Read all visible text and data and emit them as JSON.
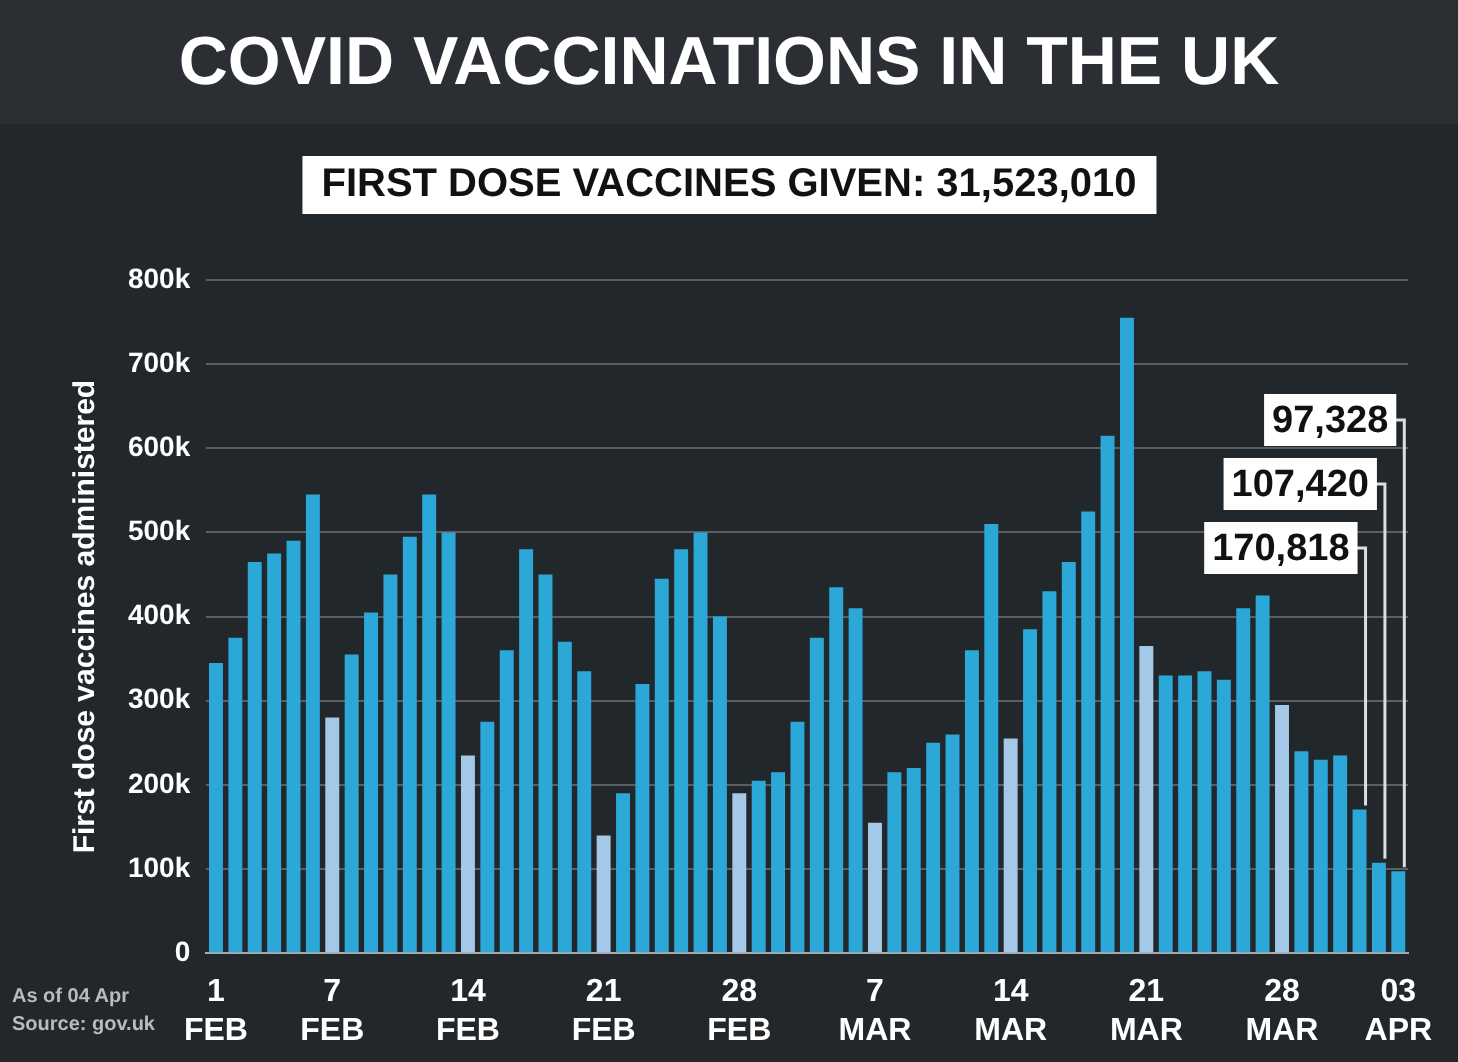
{
  "chart_data": {
    "type": "bar",
    "title": "COVID VACCINATIONS IN THE UK",
    "subtitle": "FIRST DOSE VACCINES GIVEN: 31,523,010",
    "ylabel": "First dose vaccines administered",
    "annotations": [
      "As of 04 Apr",
      "Source: gov.uk"
    ],
    "categories": [
      "1 FEB",
      null,
      null,
      null,
      null,
      null,
      "7 FEB",
      null,
      null,
      null,
      null,
      null,
      null,
      "14 FEB",
      null,
      null,
      null,
      null,
      null,
      null,
      "21 FEB",
      null,
      null,
      null,
      null,
      null,
      null,
      "28 FEB",
      null,
      null,
      null,
      null,
      null,
      null,
      "7 MAR",
      null,
      null,
      null,
      null,
      null,
      null,
      "14 MAR",
      null,
      null,
      null,
      null,
      null,
      null,
      "21 MAR",
      null,
      null,
      null,
      null,
      null,
      null,
      "28 MAR",
      null,
      null,
      null,
      null,
      null,
      "03 APR"
    ],
    "values": [
      345000,
      375000,
      465000,
      475000,
      490000,
      545000,
      280000,
      355000,
      405000,
      450000,
      495000,
      545000,
      500000,
      235000,
      275000,
      360000,
      480000,
      450000,
      370000,
      335000,
      140000,
      190000,
      320000,
      445000,
      480000,
      500000,
      400000,
      190000,
      205000,
      215000,
      275000,
      375000,
      435000,
      410000,
      155000,
      215000,
      220000,
      250000,
      260000,
      360000,
      510000,
      255000,
      385000,
      430000,
      465000,
      525000,
      615000,
      755000,
      365000,
      330000,
      330000,
      335000,
      325000,
      410000,
      425000,
      295000,
      240000,
      230000,
      235000,
      170818,
      107420,
      97328
    ],
    "colors": [
      "#2ba8d8",
      "#2ba8d8",
      "#2ba8d8",
      "#2ba8d8",
      "#2ba8d8",
      "#2ba8d8",
      "#a3c8e8",
      "#2ba8d8",
      "#2ba8d8",
      "#2ba8d8",
      "#2ba8d8",
      "#2ba8d8",
      "#2ba8d8",
      "#a3c8e8",
      "#2ba8d8",
      "#2ba8d8",
      "#2ba8d8",
      "#2ba8d8",
      "#2ba8d8",
      "#2ba8d8",
      "#a3c8e8",
      "#2ba8d8",
      "#2ba8d8",
      "#2ba8d8",
      "#2ba8d8",
      "#2ba8d8",
      "#2ba8d8",
      "#a3c8e8",
      "#2ba8d8",
      "#2ba8d8",
      "#2ba8d8",
      "#2ba8d8",
      "#2ba8d8",
      "#2ba8d8",
      "#a3c8e8",
      "#2ba8d8",
      "#2ba8d8",
      "#2ba8d8",
      "#2ba8d8",
      "#2ba8d8",
      "#2ba8d8",
      "#a3c8e8",
      "#2ba8d8",
      "#2ba8d8",
      "#2ba8d8",
      "#2ba8d8",
      "#2ba8d8",
      "#2ba8d8",
      "#a3c8e8",
      "#2ba8d8",
      "#2ba8d8",
      "#2ba8d8",
      "#2ba8d8",
      "#2ba8d8",
      "#2ba8d8",
      "#a3c8e8",
      "#2ba8d8",
      "#2ba8d8",
      "#2ba8d8",
      "#2ba8d8",
      "#2ba8d8",
      "#2ba8d8"
    ],
    "value_labels": [
      null,
      null,
      null,
      null,
      null,
      null,
      null,
      null,
      null,
      null,
      null,
      null,
      null,
      null,
      null,
      null,
      null,
      null,
      null,
      null,
      null,
      null,
      null,
      null,
      null,
      null,
      null,
      null,
      null,
      null,
      null,
      null,
      null,
      null,
      null,
      null,
      null,
      null,
      null,
      null,
      null,
      null,
      null,
      null,
      null,
      null,
      null,
      null,
      null,
      null,
      null,
      null,
      null,
      null,
      null,
      null,
      null,
      null,
      null,
      "170,818",
      "107,420",
      "97,328"
    ],
    "ylim": [
      0,
      800000
    ],
    "yticks": [
      0,
      {
        "value": 100000,
        "label": "100k"
      },
      {
        "value": 200000,
        "label": "200k"
      },
      {
        "value": 300000,
        "label": "300k"
      },
      {
        "value": 400000,
        "label": "400k"
      },
      {
        "value": 500000,
        "label": "500k"
      },
      {
        "value": 600000,
        "label": "600k"
      },
      {
        "value": 700000,
        "label": "700k"
      },
      {
        "value": 800000,
        "label": "800k"
      }
    ],
    "grid": "y",
    "legend": false
  }
}
